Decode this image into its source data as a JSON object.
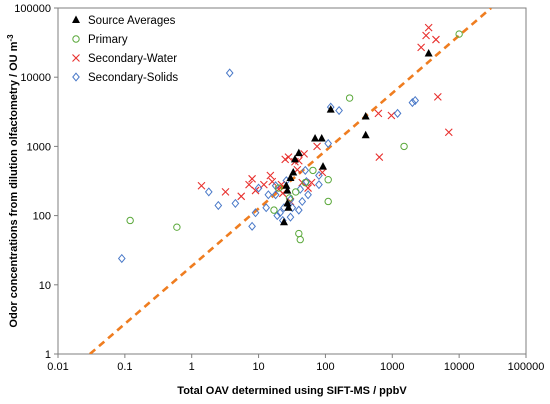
{
  "chart_data": {
    "type": "scatter",
    "title": "",
    "xlabel": "Total OAV determined using SIFT-MS / ppbV",
    "ylabel": "Odor concentrations from dilution olfactometry / OU m",
    "ylabel_superscript": "-3",
    "x_scale": "log",
    "y_scale": "log",
    "xlim": [
      0.01,
      100000
    ],
    "ylim": [
      1,
      100000
    ],
    "x_ticks": [
      "0.01",
      "0.1",
      "1",
      "10",
      "100",
      "1000",
      "10000",
      "100000"
    ],
    "y_ticks": [
      "1",
      "10",
      "100",
      "1000",
      "10000",
      "100000"
    ],
    "grid": false,
    "legend_position": "top-left",
    "colors": {
      "source_averages": "#000000",
      "primary": "#5aa83a",
      "secondary_water": "#e8302e",
      "secondary_solids": "#4a79c8",
      "fit_line": "#ef7d20"
    },
    "series": [
      {
        "name": "Source Averages",
        "marker": "triangle",
        "points": [
          [
            3500,
            22000
          ],
          [
            400,
            2700
          ],
          [
            400,
            1450
          ],
          [
            120,
            3400
          ],
          [
            70,
            1300
          ],
          [
            88,
            1300
          ],
          [
            35,
            650
          ],
          [
            40,
            800
          ],
          [
            33,
            420
          ],
          [
            30,
            350
          ],
          [
            26,
            270
          ],
          [
            27,
            230
          ],
          [
            27,
            150
          ],
          [
            28,
            130
          ],
          [
            24,
            80
          ],
          [
            92,
            510
          ]
        ]
      },
      {
        "name": "Primary",
        "marker": "circle",
        "points": [
          [
            10000,
            42000
          ],
          [
            230,
            5000
          ],
          [
            0.12,
            85
          ],
          [
            0.6,
            68
          ],
          [
            17,
            120
          ],
          [
            40,
            55
          ],
          [
            42,
            45
          ],
          [
            110,
            330
          ],
          [
            110,
            160
          ],
          [
            1500,
            1000
          ],
          [
            65,
            450
          ],
          [
            20,
            250
          ],
          [
            29,
            180
          ],
          [
            36,
            220
          ],
          [
            50,
            300
          ]
        ]
      },
      {
        "name": "Secondary-Water",
        "marker": "x",
        "points": [
          [
            3500,
            52000
          ],
          [
            3200,
            40000
          ],
          [
            2700,
            27000
          ],
          [
            4500,
            35000
          ],
          [
            4800,
            5200
          ],
          [
            7000,
            1600
          ],
          [
            640,
            700
          ],
          [
            620,
            3000
          ],
          [
            970,
            2800
          ],
          [
            1.4,
            270
          ],
          [
            3.2,
            220
          ],
          [
            5.5,
            190
          ],
          [
            7.2,
            280
          ],
          [
            8,
            340
          ],
          [
            9,
            230
          ],
          [
            12,
            280
          ],
          [
            15,
            380
          ],
          [
            16,
            310
          ],
          [
            20,
            240
          ],
          [
            23,
            210
          ],
          [
            25,
            650
          ],
          [
            28,
            700
          ],
          [
            35,
            600
          ],
          [
            40,
            620
          ],
          [
            45,
            300
          ],
          [
            55,
            250
          ],
          [
            62,
            300
          ],
          [
            75,
            1000
          ],
          [
            90,
            420
          ],
          [
            30,
            160
          ],
          [
            38,
            460
          ],
          [
            22,
            280
          ],
          [
            48,
            780
          ]
        ]
      },
      {
        "name": "Secondary-Solids",
        "marker": "diamond",
        "points": [
          [
            3.7,
            11500
          ],
          [
            0.09,
            24
          ],
          [
            1.8,
            220
          ],
          [
            2.5,
            140
          ],
          [
            4.5,
            150
          ],
          [
            8,
            70
          ],
          [
            9,
            110
          ],
          [
            10,
            250
          ],
          [
            13,
            130
          ],
          [
            14,
            200
          ],
          [
            18,
            270
          ],
          [
            19,
            100
          ],
          [
            21,
            110
          ],
          [
            23,
            85
          ],
          [
            24,
            130
          ],
          [
            30,
            95
          ],
          [
            32,
            130
          ],
          [
            40,
            120
          ],
          [
            42,
            240
          ],
          [
            55,
            200
          ],
          [
            80,
            380
          ],
          [
            80,
            280
          ],
          [
            120,
            3700
          ],
          [
            160,
            3300
          ],
          [
            1200,
            3000
          ],
          [
            2000,
            4300
          ],
          [
            2200,
            4600
          ],
          [
            110,
            1100
          ],
          [
            50,
            450
          ],
          [
            18,
            200
          ],
          [
            45,
            160
          ],
          [
            26,
            320
          ],
          [
            30,
            170
          ],
          [
            52,
            310
          ]
        ]
      }
    ],
    "fit_line": {
      "style": "dashed",
      "points": [
        [
          0.03,
          1
        ],
        [
          30000,
          100000
        ]
      ]
    }
  }
}
